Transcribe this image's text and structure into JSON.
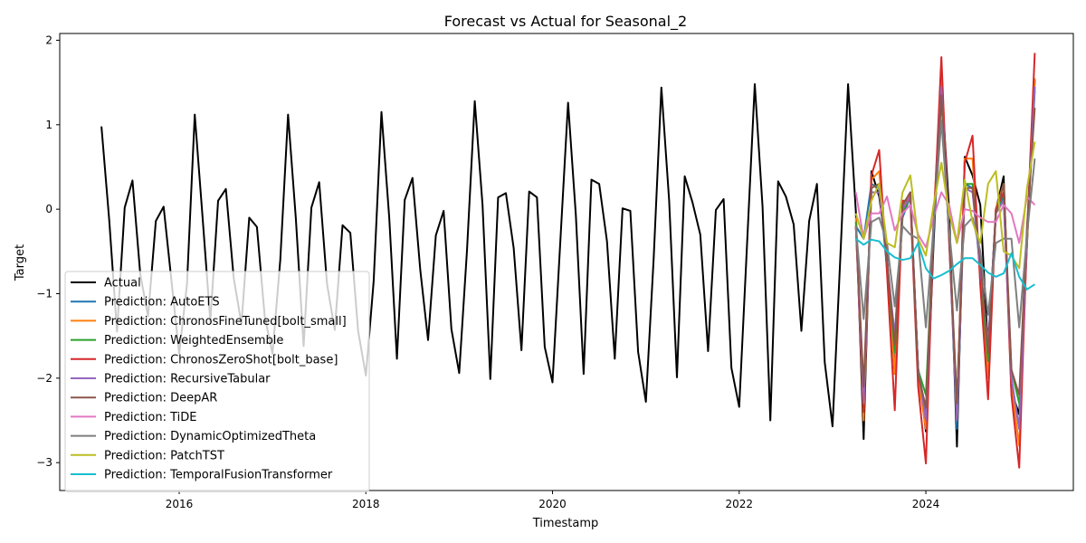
{
  "chart_data": {
    "type": "line",
    "title": "Forecast vs Actual for Seasonal_2",
    "xlabel": "Timestamp",
    "ylabel": "Target",
    "xlim": [
      2014.72,
      2025.58
    ],
    "ylim": [
      -3.33,
      2.08
    ],
    "x_ticks": [
      2016,
      2018,
      2020,
      2022,
      2024
    ],
    "y_ticks": [
      -3,
      -2,
      -1,
      0,
      1,
      2
    ],
    "grid": false,
    "legend_position": "lower-left",
    "actual": {
      "name": "Actual",
      "color": "#000000",
      "start_year": 2015,
      "start_month": 3,
      "values": [
        0.98,
        -0.13,
        -1.45,
        0.02,
        0.34,
        -0.77,
        -1.27,
        -0.14,
        0.03,
        -0.84,
        -1.71,
        -0.89,
        1.12,
        -0.09,
        -1.33,
        0.1,
        0.24,
        -0.81,
        -1.36,
        -0.1,
        -0.21,
        -1.27,
        -1.71,
        -0.6,
        1.12,
        -0.11,
        -1.62,
        0.02,
        0.32,
        -0.88,
        -1.43,
        -0.19,
        -0.28,
        -1.44,
        -1.97,
        -0.85,
        1.15,
        -0.1,
        -1.77,
        0.11,
        0.37,
        -0.72,
        -1.55,
        -0.31,
        -0.02,
        -1.42,
        -1.94,
        -0.49,
        1.28,
        0.05,
        -2.01,
        0.14,
        0.19,
        -0.46,
        -1.67,
        0.21,
        0.14,
        -1.63,
        -2.05,
        -0.39,
        1.26,
        -0.07,
        -1.95,
        0.35,
        0.3,
        -0.38,
        -1.77,
        0.01,
        -0.02,
        -1.69,
        -2.28,
        -0.58,
        1.44,
        0.1,
        -1.99,
        0.39,
        0.08,
        -0.3,
        -1.68,
        -0.01,
        0.12,
        -1.88,
        -2.34,
        -0.43,
        1.48,
        0.03,
        -2.5,
        0.33,
        0.15,
        -0.18,
        -1.44,
        -0.14,
        0.3,
        -1.81,
        -2.57,
        -0.58,
        1.48,
        -0.03,
        -2.72,
        0.45,
        0.15,
        -0.55,
        -1.95,
        0.04,
        0.2,
        -1.88,
        -2.63,
        -0.4,
        1.51,
        -0.02,
        -2.81,
        0.62,
        0.4,
        0.05,
        -1.67,
        -0.01,
        0.39,
        -2.15,
        -2.43,
        -0.42,
        1.53
      ]
    },
    "forecast_x": [
      "2023-04",
      "2023-05",
      "2023-06",
      "2023-07",
      "2023-08",
      "2023-09",
      "2023-10",
      "2023-11",
      "2023-12",
      "2024-01",
      "2024-02",
      "2024-03",
      "2024-04",
      "2024-05",
      "2024-06",
      "2024-07",
      "2024-08",
      "2024-09",
      "2024-10",
      "2024-11",
      "2024-12",
      "2025-01",
      "2025-02",
      "2025-03"
    ],
    "series": [
      {
        "name": "Prediction: AutoETS",
        "color": "#1f77b4",
        "values": [
          -0.2,
          -0.35,
          0.3,
          0.25,
          -0.7,
          -1.5,
          -0.1,
          0.15,
          -1.9,
          -2.4,
          -0.3,
          1.4,
          -0.35,
          -2.6,
          0.3,
          0.25,
          -0.75,
          -1.6,
          -0.05,
          0.15,
          -2.0,
          -2.6,
          -0.3,
          1.45
        ]
      },
      {
        "name": "Prediction: ChronosFineTuned[bolt_small]",
        "color": "#ff7f0e",
        "values": [
          -0.1,
          -2.5,
          0.35,
          0.45,
          -0.6,
          -1.95,
          0.0,
          0.2,
          -2.0,
          -2.6,
          -0.1,
          1.55,
          -0.3,
          -2.5,
          0.6,
          0.6,
          -0.8,
          -2.0,
          0.0,
          0.3,
          -2.1,
          -2.8,
          -0.4,
          1.55
        ]
      },
      {
        "name": "Prediction: WeightedEnsemble",
        "color": "#2ca02c",
        "values": [
          -0.15,
          -2.2,
          0.25,
          0.3,
          -0.65,
          -1.7,
          -0.05,
          0.15,
          -1.9,
          -2.2,
          -0.2,
          1.3,
          -0.3,
          -2.3,
          0.3,
          0.3,
          -0.7,
          -1.8,
          -0.05,
          0.2,
          -1.9,
          -2.3,
          -0.3,
          1.4
        ]
      },
      {
        "name": "Prediction: ChronosZeroShot[bolt_base]",
        "color": "#d62728",
        "values": [
          -0.2,
          -2.4,
          0.4,
          0.7,
          -0.75,
          -2.38,
          0.1,
          0.1,
          -2.1,
          -3.01,
          -0.2,
          1.8,
          -0.4,
          -2.4,
          0.55,
          0.87,
          -0.9,
          -2.25,
          0.0,
          0.2,
          -2.2,
          -3.06,
          -0.3,
          1.85
        ]
      },
      {
        "name": "Prediction: RecursiveTabular",
        "color": "#9467bd",
        "values": [
          -0.2,
          -2.3,
          0.2,
          0.2,
          -0.6,
          -1.5,
          0.0,
          0.15,
          -1.9,
          -2.5,
          -0.2,
          1.45,
          -0.3,
          -2.5,
          0.25,
          0.2,
          -0.7,
          -1.6,
          -0.05,
          0.1,
          -2.0,
          -2.6,
          -0.3,
          1.45
        ]
      },
      {
        "name": "Prediction: DeepAR",
        "color": "#8c564b",
        "values": [
          -0.2,
          -2.1,
          0.25,
          0.3,
          -0.6,
          -1.6,
          0.05,
          0.2,
          -1.95,
          -2.35,
          -0.2,
          1.35,
          -0.3,
          -2.3,
          0.25,
          0.25,
          -0.6,
          -1.7,
          -0.05,
          0.3,
          -1.9,
          -2.2,
          -0.2,
          1.2
        ]
      },
      {
        "name": "Prediction: TiDE",
        "color": "#e377c2",
        "values": [
          0.2,
          -0.35,
          -0.05,
          -0.05,
          0.15,
          -0.25,
          -0.05,
          0.05,
          -0.3,
          -0.45,
          -0.1,
          0.2,
          0.05,
          -0.4,
          0.0,
          -0.02,
          -0.1,
          -0.15,
          -0.15,
          0.05,
          -0.05,
          -0.4,
          0.15,
          0.05
        ]
      },
      {
        "name": "Prediction: DynamicOptimizedTheta",
        "color": "#7f7f7f",
        "values": [
          -0.2,
          -1.3,
          -0.15,
          -0.1,
          -0.4,
          -1.15,
          -0.2,
          -0.3,
          -0.35,
          -1.4,
          -0.2,
          1.05,
          -0.25,
          -1.2,
          -0.2,
          -0.1,
          -0.5,
          -1.25,
          -0.4,
          -0.35,
          -0.35,
          -1.4,
          -0.3,
          0.6
        ]
      },
      {
        "name": "Prediction: PatchTST",
        "color": "#bcbd22",
        "values": [
          -0.05,
          -0.35,
          0.1,
          0.3,
          -0.4,
          -0.45,
          0.2,
          0.4,
          -0.35,
          -0.55,
          0.05,
          0.55,
          -0.05,
          -0.4,
          0.35,
          -0.15,
          -0.4,
          0.3,
          0.45,
          -0.5,
          -0.55,
          -0.7,
          0.25,
          0.8
        ]
      },
      {
        "name": "Prediction: TemporalFusionTransformer",
        "color": "#17becf",
        "values": [
          -0.35,
          -0.42,
          -0.36,
          -0.38,
          -0.5,
          -0.57,
          -0.6,
          -0.58,
          -0.4,
          -0.7,
          -0.82,
          -0.78,
          -0.73,
          -0.65,
          -0.58,
          -0.58,
          -0.66,
          -0.75,
          -0.8,
          -0.76,
          -0.52,
          -0.8,
          -0.95,
          -0.89
        ]
      }
    ]
  }
}
